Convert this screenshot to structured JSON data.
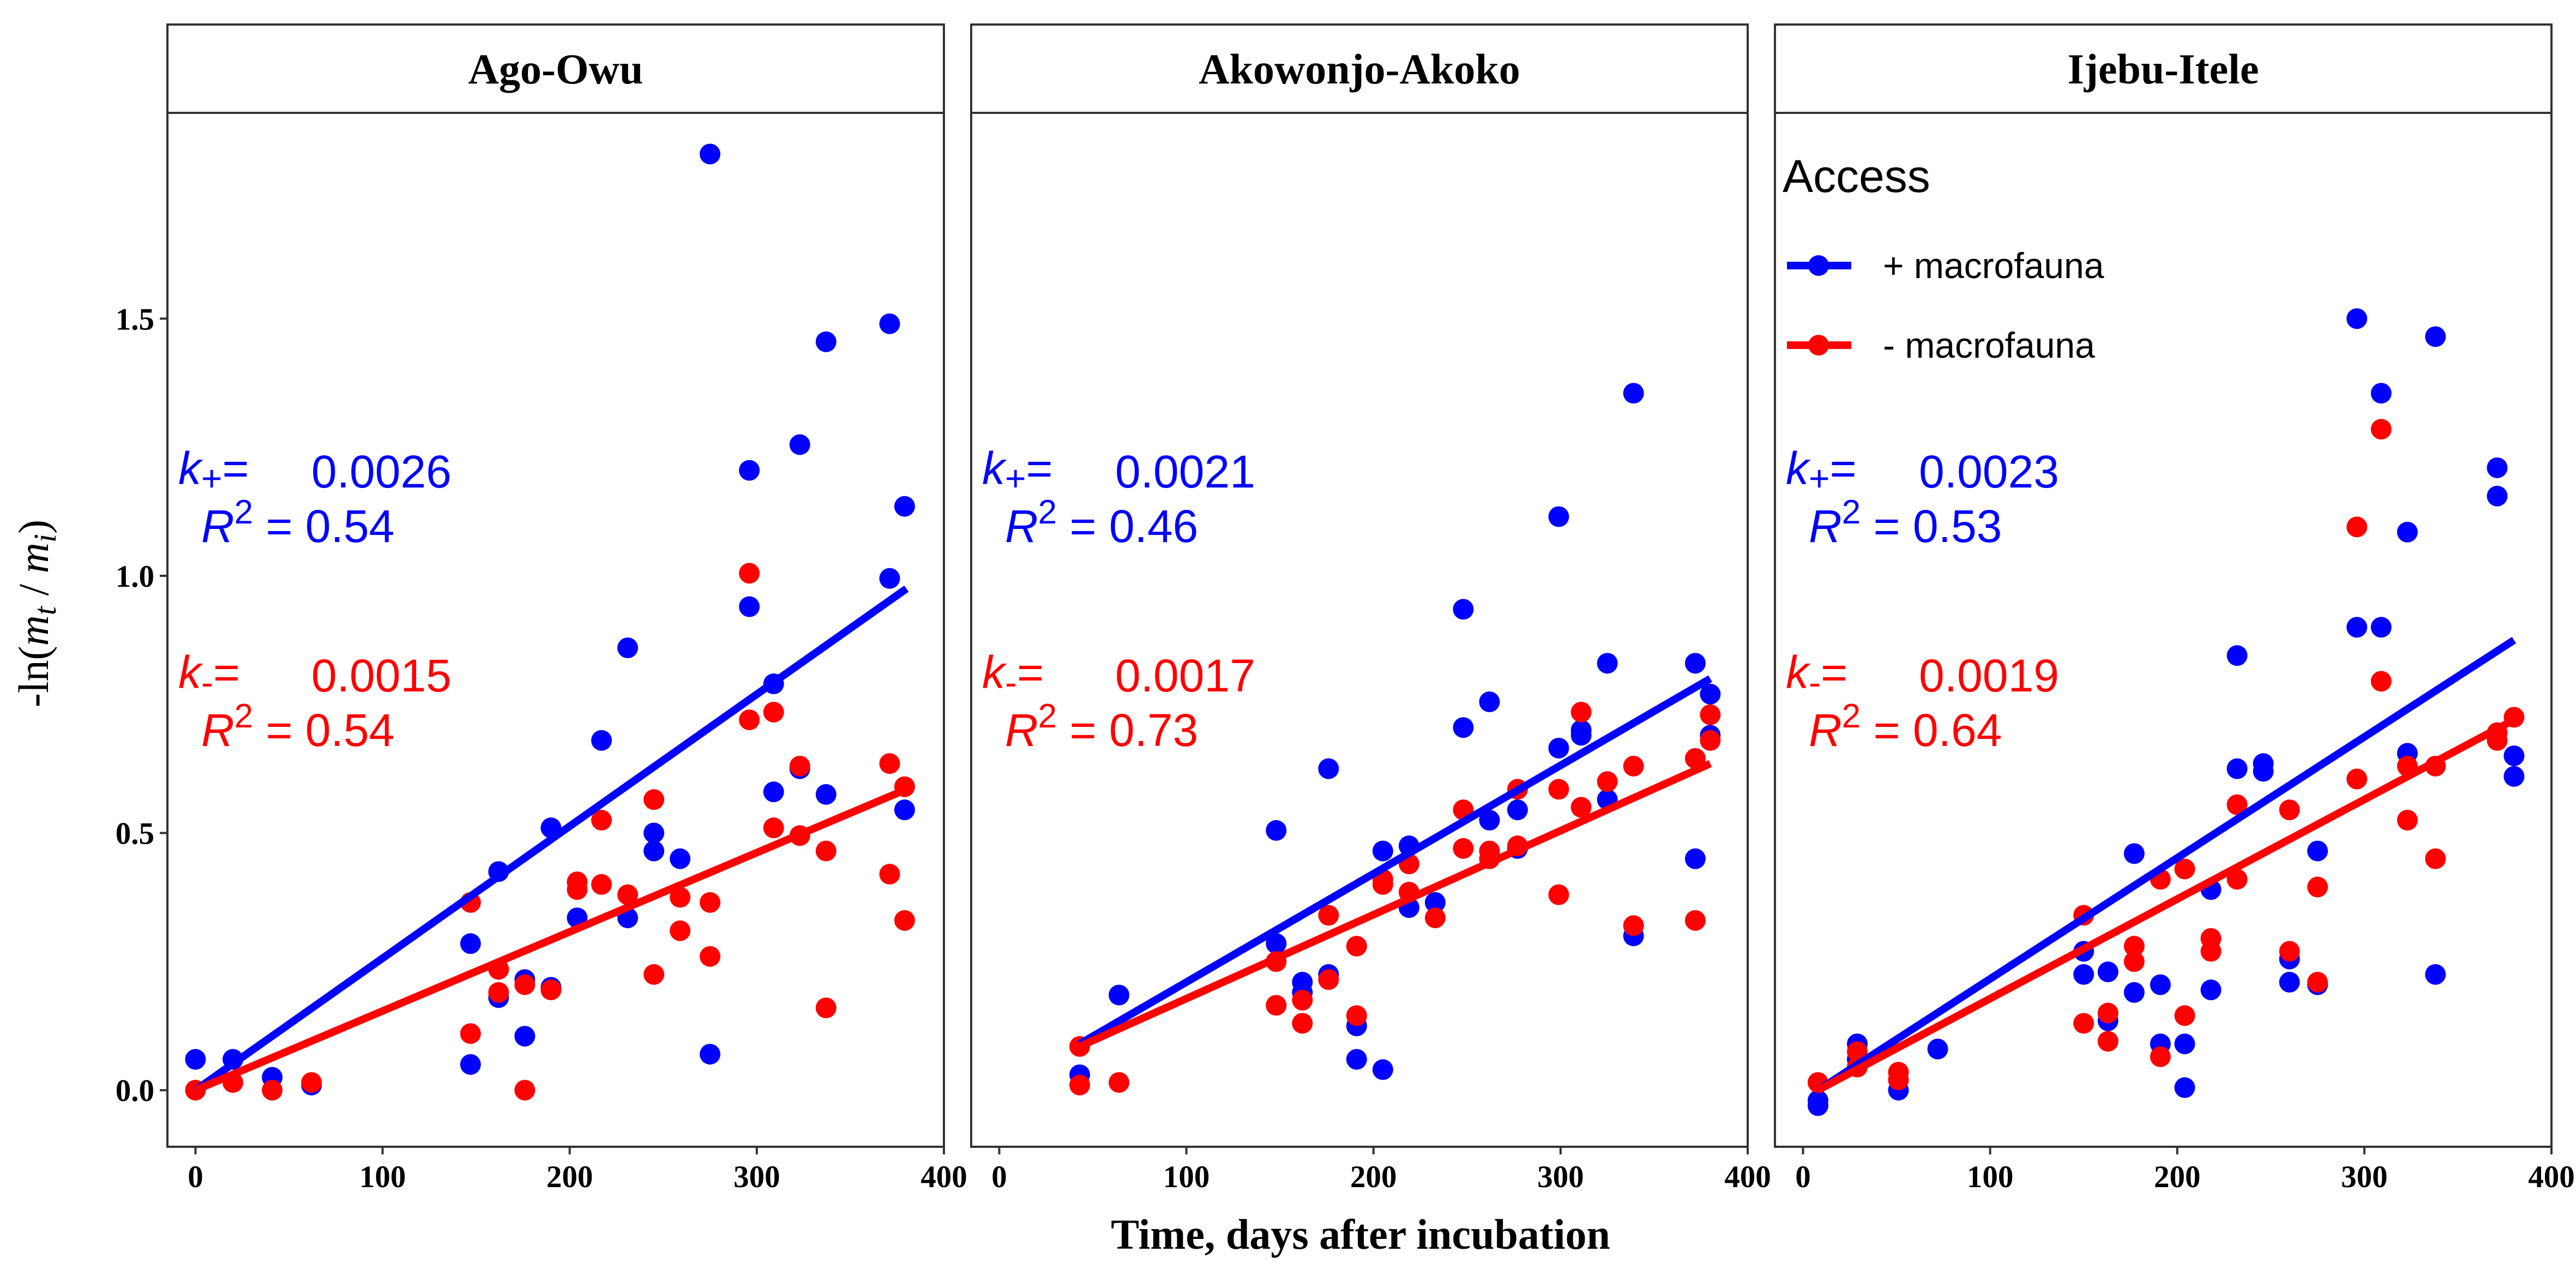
{
  "chart_data": {
    "type": "scatter",
    "xlabel": "Time, days after incubation",
    "ylabel": "-ln(m_t / m_i)",
    "xlim": [
      -15,
      400
    ],
    "ylim": [
      -0.11,
      1.9
    ],
    "x_ticks": [
      0,
      100,
      200,
      300,
      400
    ],
    "y_ticks": [
      0.0,
      0.5,
      1.0,
      1.5
    ],
    "y_tick_labels": [
      "0.0",
      "0.5",
      "1.0",
      "1.5"
    ],
    "grid": false,
    "legend": {
      "title": "Access",
      "position": "inside top-right panel",
      "items": [
        {
          "label": "+ macrofauna",
          "color": "#0000ff",
          "key": "plus"
        },
        {
          "label": "- macrofauna",
          "color": "#ff0000",
          "key": "minus"
        }
      ]
    },
    "panels": [
      {
        "title": "Ago-Owu",
        "plus": {
          "k": "0.0026",
          "r2": "0.54",
          "line": [
            [
              0,
              0.0
            ],
            [
              380,
              0.975
            ]
          ],
          "points": [
            [
              0,
              0.06
            ],
            [
              20,
              0.06
            ],
            [
              41,
              0.025
            ],
            [
              62,
              0.01
            ],
            [
              147,
              0.285
            ],
            [
              147,
              0.05
            ],
            [
              162,
              0.425
            ],
            [
              162,
              0.18
            ],
            [
              176,
              0.215
            ],
            [
              176,
              0.105
            ],
            [
              190,
              0.51
            ],
            [
              190,
              0.2
            ],
            [
              204,
              0.335
            ],
            [
              217,
              0.68
            ],
            [
              231,
              0.86
            ],
            [
              231,
              0.335
            ],
            [
              245,
              0.5
            ],
            [
              245,
              0.465
            ],
            [
              259,
              0.45
            ],
            [
              275,
              1.82
            ],
            [
              275,
              0.07
            ],
            [
              296,
              1.205
            ],
            [
              296,
              0.94
            ],
            [
              309,
              0.79
            ],
            [
              309,
              0.58
            ],
            [
              323,
              1.255
            ],
            [
              323,
              0.625
            ],
            [
              337,
              1.455
            ],
            [
              337,
              0.575
            ],
            [
              371,
              1.49
            ],
            [
              371,
              0.995
            ],
            [
              379,
              1.135
            ],
            [
              379,
              0.545
            ]
          ]
        },
        "minus": {
          "k": "0.0015",
          "r2": "0.54",
          "line": [
            [
              0,
              0.0
            ],
            [
              380,
              0.585
            ]
          ],
          "points": [
            [
              0,
              0.0
            ],
            [
              20,
              0.015
            ],
            [
              41,
              0.0
            ],
            [
              62,
              0.015
            ],
            [
              147,
              0.365
            ],
            [
              147,
              0.11
            ],
            [
              162,
              0.235
            ],
            [
              162,
              0.19
            ],
            [
              176,
              0.0
            ],
            [
              176,
              0.205
            ],
            [
              190,
              0.195
            ],
            [
              204,
              0.405
            ],
            [
              204,
              0.39
            ],
            [
              217,
              0.525
            ],
            [
              217,
              0.4
            ],
            [
              231,
              0.38
            ],
            [
              245,
              0.565
            ],
            [
              245,
              0.225
            ],
            [
              259,
              0.375
            ],
            [
              259,
              0.31
            ],
            [
              275,
              0.365
            ],
            [
              275,
              0.26
            ],
            [
              296,
              1.005
            ],
            [
              296,
              0.72
            ],
            [
              309,
              0.735
            ],
            [
              309,
              0.51
            ],
            [
              323,
              0.63
            ],
            [
              323,
              0.495
            ],
            [
              337,
              0.465
            ],
            [
              337,
              0.16
            ],
            [
              371,
              0.635
            ],
            [
              371,
              0.42
            ],
            [
              379,
              0.59
            ],
            [
              379,
              0.33
            ]
          ]
        }
      },
      {
        "title": "Akowonjo-Akoko",
        "plus": {
          "k": "0.0021",
          "r2": "0.46",
          "line": [
            [
              43,
              0.09
            ],
            [
              380,
              0.8
            ]
          ],
          "points": [
            [
              43,
              0.03
            ],
            [
              64,
              0.185
            ],
            [
              148,
              0.505
            ],
            [
              148,
              0.285
            ],
            [
              162,
              0.21
            ],
            [
              162,
              0.19
            ],
            [
              176,
              0.625
            ],
            [
              176,
              0.225
            ],
            [
              191,
              0.125
            ],
            [
              191,
              0.06
            ],
            [
              205,
              0.465
            ],
            [
              205,
              0.04
            ],
            [
              219,
              0.475
            ],
            [
              219,
              0.355
            ],
            [
              233,
              0.365
            ],
            [
              248,
              0.935
            ],
            [
              248,
              0.705
            ],
            [
              262,
              0.755
            ],
            [
              262,
              0.525
            ],
            [
              277,
              0.545
            ],
            [
              277,
              0.47
            ],
            [
              299,
              1.115
            ],
            [
              299,
              0.665
            ],
            [
              311,
              0.7
            ],
            [
              311,
              0.69
            ],
            [
              325,
              0.83
            ],
            [
              325,
              0.565
            ],
            [
              339,
              1.355
            ],
            [
              339,
              0.3
            ],
            [
              372,
              0.83
            ],
            [
              372,
              0.45
            ],
            [
              380,
              0.77
            ],
            [
              380,
              0.69
            ]
          ]
        },
        "minus": {
          "k": "0.0017",
          "r2": "0.73",
          "line": [
            [
              43,
              0.085
            ],
            [
              380,
              0.635
            ]
          ],
          "points": [
            [
              43,
              0.085
            ],
            [
              43,
              0.01
            ],
            [
              64,
              0.015
            ],
            [
              148,
              0.25
            ],
            [
              148,
              0.165
            ],
            [
              162,
              0.175
            ],
            [
              162,
              0.13
            ],
            [
              176,
              0.34
            ],
            [
              176,
              0.215
            ],
            [
              191,
              0.28
            ],
            [
              191,
              0.145
            ],
            [
              205,
              0.41
            ],
            [
              205,
              0.4
            ],
            [
              219,
              0.44
            ],
            [
              219,
              0.385
            ],
            [
              233,
              0.335
            ],
            [
              248,
              0.545
            ],
            [
              248,
              0.47
            ],
            [
              262,
              0.465
            ],
            [
              262,
              0.45
            ],
            [
              277,
              0.585
            ],
            [
              277,
              0.475
            ],
            [
              299,
              0.585
            ],
            [
              299,
              0.38
            ],
            [
              311,
              0.735
            ],
            [
              311,
              0.55
            ],
            [
              325,
              0.6
            ],
            [
              339,
              0.63
            ],
            [
              339,
              0.32
            ],
            [
              372,
              0.645
            ],
            [
              372,
              0.33
            ],
            [
              380,
              0.73
            ],
            [
              380,
              0.68
            ]
          ]
        }
      },
      {
        "title": "Ijebu-Itele",
        "plus": {
          "k": "0.0023",
          "r2": "0.53",
          "line": [
            [
              8,
              0.0
            ],
            [
              380,
              0.875
            ]
          ],
          "points": [
            [
              8,
              -0.02
            ],
            [
              8,
              -0.03
            ],
            [
              29,
              0.09
            ],
            [
              29,
              0.06
            ],
            [
              51,
              0.02
            ],
            [
              51,
              0.0
            ],
            [
              72,
              0.08
            ],
            [
              150,
              0.27
            ],
            [
              150,
              0.225
            ],
            [
              163,
              0.23
            ],
            [
              163,
              0.135
            ],
            [
              177,
              0.46
            ],
            [
              177,
              0.19
            ],
            [
              191,
              0.205
            ],
            [
              191,
              0.09
            ],
            [
              204,
              0.09
            ],
            [
              204,
              0.005
            ],
            [
              218,
              0.39
            ],
            [
              218,
              0.195
            ],
            [
              232,
              0.845
            ],
            [
              232,
              0.625
            ],
            [
              246,
              0.635
            ],
            [
              246,
              0.62
            ],
            [
              260,
              0.255
            ],
            [
              260,
              0.21
            ],
            [
              275,
              0.465
            ],
            [
              275,
              0.205
            ],
            [
              296,
              1.5
            ],
            [
              296,
              0.9
            ],
            [
              309,
              1.355
            ],
            [
              309,
              0.9
            ],
            [
              323,
              1.085
            ],
            [
              323,
              0.655
            ],
            [
              338,
              1.465
            ],
            [
              338,
              0.225
            ],
            [
              371,
              1.21
            ],
            [
              371,
              1.155
            ],
            [
              380,
              0.65
            ],
            [
              380,
              0.61
            ]
          ]
        },
        "minus": {
          "k": "0.0019",
          "r2": "0.64",
          "line": [
            [
              8,
              0.0
            ],
            [
              380,
              0.72
            ]
          ],
          "points": [
            [
              8,
              0.015
            ],
            [
              29,
              0.075
            ],
            [
              29,
              0.045
            ],
            [
              51,
              0.035
            ],
            [
              51,
              0.02
            ],
            [
              150,
              0.34
            ],
            [
              150,
              0.13
            ],
            [
              163,
              0.15
            ],
            [
              163,
              0.095
            ],
            [
              177,
              0.28
            ],
            [
              177,
              0.25
            ],
            [
              191,
              0.41
            ],
            [
              191,
              0.065
            ],
            [
              204,
              0.43
            ],
            [
              204,
              0.145
            ],
            [
              218,
              0.295
            ],
            [
              218,
              0.27
            ],
            [
              232,
              0.555
            ],
            [
              232,
              0.41
            ],
            [
              260,
              0.545
            ],
            [
              260,
              0.27
            ],
            [
              275,
              0.395
            ],
            [
              275,
              0.21
            ],
            [
              296,
              1.095
            ],
            [
              296,
              0.605
            ],
            [
              309,
              1.285
            ],
            [
              309,
              0.795
            ],
            [
              323,
              0.63
            ],
            [
              323,
              0.525
            ],
            [
              338,
              0.63
            ],
            [
              338,
              0.45
            ],
            [
              371,
              0.695
            ],
            [
              371,
              0.68
            ],
            [
              380,
              0.725
            ]
          ]
        }
      }
    ]
  }
}
